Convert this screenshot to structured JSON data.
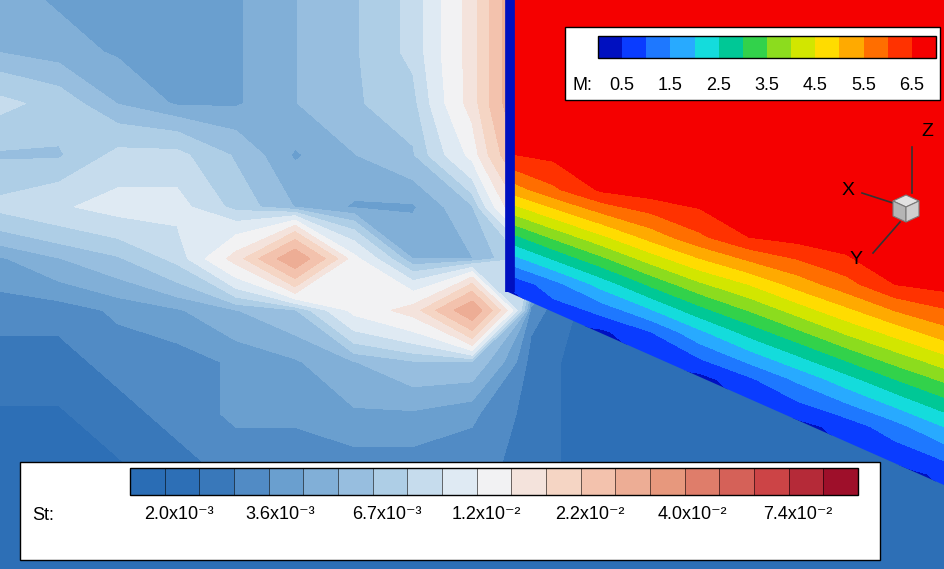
{
  "chart_data": {
    "type": "contour",
    "tick_labels": false,
    "axes_triad": [
      "X",
      "Y",
      "Z"
    ],
    "fields": [
      {
        "label": "St:",
        "log": true,
        "lim": [
          0.0015,
          0.105
        ],
        "ticks": [
          {
            "value": 0.002,
            "label": "2.0x10⁻³"
          },
          {
            "value": 0.0036,
            "label": "3.6x10⁻³"
          },
          {
            "value": 0.0067,
            "label": "6.7x10⁻³"
          },
          {
            "value": 0.012,
            "label": "1.2x10⁻²"
          },
          {
            "value": 0.022,
            "label": "2.2x10⁻²"
          },
          {
            "value": 0.04,
            "label": "4.0x10⁻²"
          },
          {
            "value": 0.074,
            "label": "7.4x10⁻²"
          }
        ],
        "cells": [
          [
            0.0045,
            0.004,
            0.0035,
            0.0035,
            0.004,
            0.005,
            0.006,
            0.008,
            0.015,
            0.035,
            0.002,
            0.002,
            0.002,
            0.002,
            0.002,
            0.002,
            0.002
          ],
          [
            0.005,
            0.0045,
            0.004,
            0.0035,
            0.004,
            0.005,
            0.006,
            0.008,
            0.015,
            0.035,
            0.002,
            0.002,
            0.002,
            0.002,
            0.002,
            0.002,
            0.002
          ],
          [
            0.008,
            0.007,
            0.005,
            0.004,
            0.004,
            0.005,
            0.006,
            0.007,
            0.015,
            0.035,
            0.002,
            0.002,
            0.002,
            0.002,
            0.002,
            0.002,
            0.002
          ],
          [
            0.006,
            0.006,
            0.008,
            0.008,
            0.006,
            0.004,
            0.005,
            0.006,
            0.012,
            0.03,
            0.002,
            0.002,
            0.002,
            0.002,
            0.002,
            0.002,
            0.002
          ],
          [
            0.008,
            0.009,
            0.01,
            0.01,
            0.007,
            0.005,
            0.004,
            0.004,
            0.006,
            0.02,
            0.002,
            0.002,
            0.002,
            0.002,
            0.002,
            0.002,
            0.002
          ],
          [
            0.004,
            0.005,
            0.006,
            0.008,
            0.015,
            0.03,
            0.012,
            0.005,
            0.005,
            0.008,
            0.002,
            0.002,
            0.002,
            0.002,
            0.002,
            0.002,
            0.002
          ],
          [
            0.003,
            0.003,
            0.0035,
            0.004,
            0.005,
            0.006,
            0.012,
            0.015,
            0.03,
            0.003,
            0.002,
            0.002,
            0.002,
            0.002,
            0.002,
            0.002,
            0.002
          ],
          [
            0.0025,
            0.0025,
            0.003,
            0.003,
            0.0035,
            0.004,
            0.005,
            0.006,
            0.006,
            0.0025,
            0.002,
            0.002,
            0.002,
            0.002,
            0.002,
            0.002,
            0.002
          ],
          [
            0.0022,
            0.0022,
            0.0025,
            0.003,
            0.0035,
            0.0035,
            0.004,
            0.004,
            0.0035,
            0.0025,
            0.002,
            0.002,
            0.002,
            0.002,
            0.002,
            0.002,
            0.002
          ],
          [
            0.002,
            0.002,
            0.0022,
            0.0025,
            0.003,
            0.003,
            0.003,
            0.003,
            0.003,
            0.0025,
            0.002,
            0.002,
            0.002,
            0.002,
            0.002,
            0.002,
            0.002
          ],
          [
            0.002,
            0.002,
            0.002,
            0.002,
            0.0022,
            0.0022,
            0.0022,
            0.0022,
            0.0022,
            0.002,
            0.002,
            0.002,
            0.002,
            0.002,
            0.002,
            0.002,
            0.002
          ],
          [
            0.002,
            0.002,
            0.002,
            0.002,
            0.002,
            0.002,
            0.002,
            0.002,
            0.002,
            0.002,
            0.002,
            0.002,
            0.002,
            0.002,
            0.002,
            0.002,
            0.002
          ]
        ]
      },
      {
        "label": "M:",
        "lim": [
          0,
          7
        ],
        "ticks": [
          0.5,
          1.5,
          2.5,
          3.5,
          4.5,
          5.5,
          6.5
        ],
        "cells": [
          [
            6.9,
            6.9,
            6.9,
            6.9,
            6.9,
            6.9,
            6.9,
            6.9,
            6.9,
            6.9
          ],
          [
            6.9,
            6.9,
            6.9,
            6.9,
            6.9,
            6.9,
            6.9,
            6.9,
            6.9,
            6.9
          ],
          [
            6.9,
            6.9,
            6.9,
            6.9,
            6.9,
            6.9,
            6.9,
            6.9,
            6.9,
            6.9
          ],
          [
            6.9,
            6.9,
            6.9,
            6.9,
            6.9,
            6.9,
            6.9,
            6.9,
            6.9,
            6.9
          ],
          [
            5.1,
            5.9,
            6.6,
            6.8,
            6.9,
            6.9,
            6.9,
            6.9,
            6.9,
            6.9
          ],
          [
            2.7,
            3.6,
            4.4,
            5.2,
            5.9,
            6.5,
            6.7,
            6.9,
            6.9,
            6.9
          ],
          [
            0.5,
            1.3,
            2.2,
            3.1,
            3.9,
            4.5,
            5.2,
            5.8,
            6.5,
            6.7
          ],
          [
            0.3,
            0.3,
            0.4,
            1.0,
            1.9,
            2.7,
            3.4,
            4.1,
            4.7,
            5.3
          ],
          [
            0.3,
            0.3,
            0.3,
            0.3,
            0.3,
            0.9,
            1.6,
            2.3,
            3.0,
            3.6
          ],
          [
            0.3,
            0.3,
            0.3,
            0.3,
            0.3,
            0.3,
            0.3,
            0.7,
            1.3,
            2.0
          ],
          [
            0.3,
            0.3,
            0.3,
            0.3,
            0.3,
            0.3,
            0.3,
            0.3,
            0.3,
            0.6
          ],
          [
            0.3,
            0.3,
            0.3,
            0.3,
            0.3,
            0.3,
            0.3,
            0.3,
            0.3,
            0.3
          ],
          [
            0.3,
            0.3,
            0.3,
            0.3,
            0.3,
            0.3,
            0.3,
            0.3,
            0.3,
            0.3
          ]
        ]
      }
    ]
  }
}
